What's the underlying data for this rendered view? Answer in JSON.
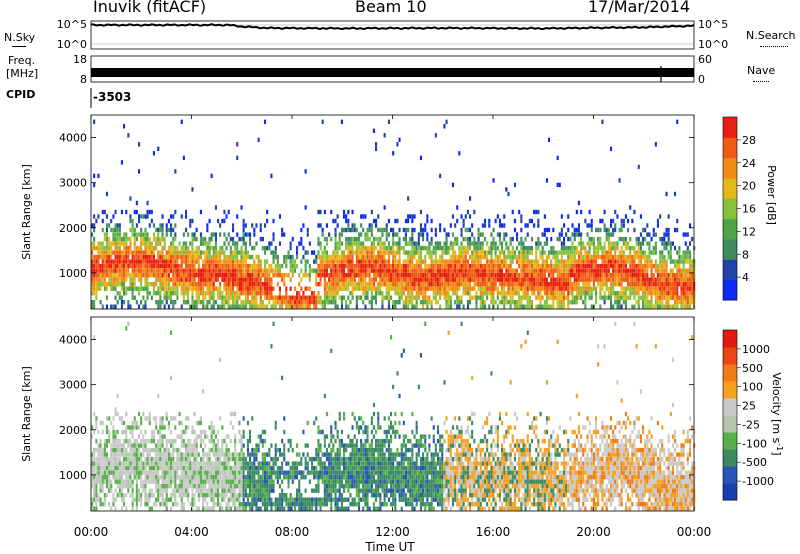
{
  "header": {
    "station": "Inuvik (fitACF)",
    "beam": "Beam 10",
    "date": "17/Mar/2014"
  },
  "side_labels": {
    "nsky": "N.Sky",
    "nsearch": "N.Search",
    "freq": "Freq.",
    "freq_unit": "[MHz]",
    "nave": "Nave",
    "cpid": "CPID",
    "cpid_value": "-3503"
  },
  "colors": {
    "power_scale": [
      "#0b2bf0",
      "#2143a6",
      "#3f8a5e",
      "#4fa34a",
      "#86c33c",
      "#e3b81c",
      "#f08a18",
      "#ef5a14",
      "#e81f10"
    ],
    "velocity_scale": [
      "#1b3fb0",
      "#2a55b8",
      "#3b8a62",
      "#58b04a",
      "#b5c6b0",
      "#c9c9c9",
      "#f5a020",
      "#ef7a18",
      "#ea4514",
      "#e01a10"
    ]
  },
  "chart_data": [
    {
      "type": "line",
      "name": "noise-panel",
      "ylabel_left": "N.Sky",
      "ylabel_right": "N.Search",
      "left_ticks": [
        "10^5",
        "10^0"
      ],
      "right_ticks": [
        "10^5",
        "10^0"
      ],
      "x": [
        "00:00",
        "02:00",
        "04:00",
        "05:30",
        "06:00",
        "07:00",
        "10:00",
        "14:00",
        "18:00",
        "22:00",
        "24:00"
      ],
      "values": [
        5.0,
        5.0,
        5.0,
        5.0,
        4.6,
        4.2,
        4.1,
        4.2,
        4.1,
        4.4,
        4.8
      ]
    },
    {
      "type": "line",
      "name": "frequency-panel",
      "ylabel_left": "Freq. [MHz]",
      "ylabel_right": "Nave",
      "left_ticks": [
        "18",
        "8"
      ],
      "right_ticks": [
        "60",
        "0"
      ],
      "x": [
        "00:00",
        "24:00"
      ],
      "values": [
        10.5,
        10.5
      ]
    },
    {
      "type": "heatmap",
      "name": "power-panel",
      "title": "Power [dB]",
      "ylabel": "Slant Range [km]",
      "ylim": [
        200,
        4500
      ],
      "yticks": [
        "1000",
        "2000",
        "3000",
        "4000"
      ],
      "xlim": [
        0,
        24
      ],
      "colorbar_ticks": [
        "4",
        "8",
        "12",
        "16",
        "20",
        "24",
        "28"
      ],
      "colorbar_label": "Power [dB]"
    },
    {
      "type": "heatmap",
      "name": "velocity-panel",
      "title": "Velocity [m s-1]",
      "ylabel": "Slant Range [km]",
      "ylim": [
        200,
        4500
      ],
      "yticks": [
        "1000",
        "2000",
        "3000",
        "4000"
      ],
      "xlim": [
        0,
        24
      ],
      "colorbar_ticks": [
        "1000",
        "500",
        "100",
        "25",
        "-25",
        "-100",
        "-500",
        "-1000"
      ],
      "colorbar_label": "Velocity [m s",
      "colorbar_label_sup": "-1",
      "colorbar_label_end": "]"
    }
  ],
  "xaxis": {
    "ticks": [
      "00:00",
      "04:00",
      "08:00",
      "12:00",
      "16:00",
      "20:00",
      "00:00"
    ],
    "label": "Time UT"
  }
}
